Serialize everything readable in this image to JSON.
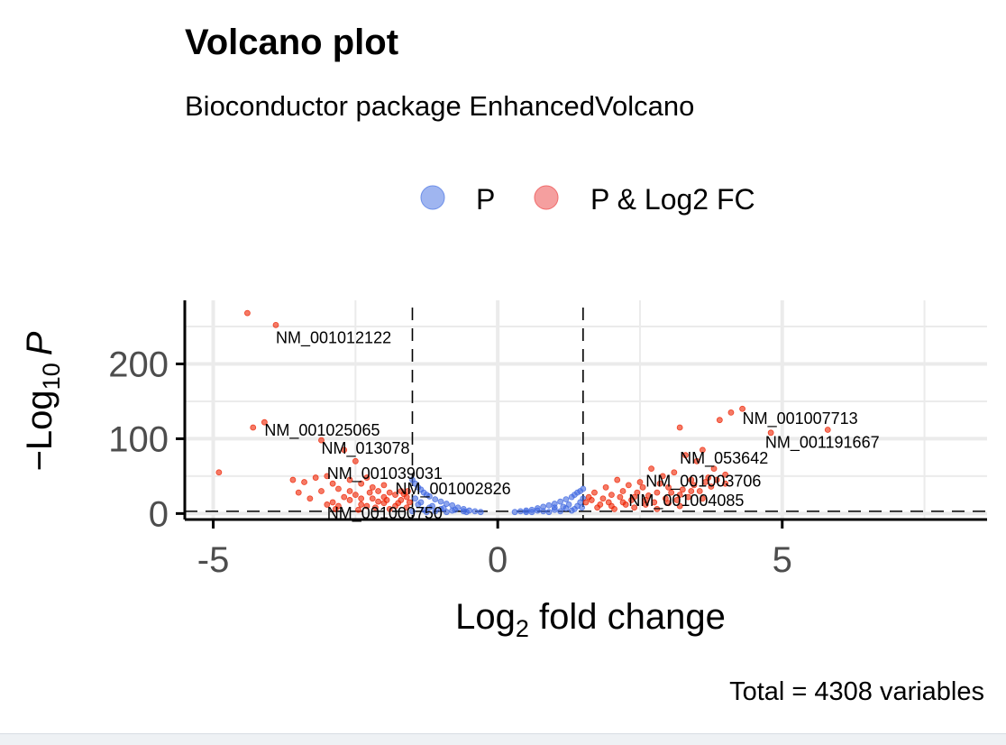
{
  "chart_data": {
    "type": "scatter",
    "title": "Volcano plot",
    "subtitle": "Bioconductor package EnhancedVolcano",
    "caption": "Total = 4308 variables",
    "xlabel": {
      "base": "Log",
      "sub": "2",
      "rest": " fold change"
    },
    "ylabel": {
      "minus": "−",
      "base": "Log",
      "sub": "10",
      "italic": "P"
    },
    "xlim": [
      -5.5,
      8.6
    ],
    "ylim": [
      -8,
      285
    ],
    "x_ticks": [
      {
        "value": -5,
        "label": "-5"
      },
      {
        "value": 0,
        "label": "0"
      },
      {
        "value": 5,
        "label": "5"
      }
    ],
    "y_ticks": [
      {
        "value": 0,
        "label": "0"
      },
      {
        "value": 100,
        "label": "100"
      },
      {
        "value": 200,
        "label": "200"
      }
    ],
    "grid": true,
    "legend_position": "top",
    "thresholds": {
      "fc_cutoff": 1.5,
      "p_cutoff_neglog10": 3
    },
    "legend": [
      {
        "name": "P",
        "color": "#6c8ee8"
      },
      {
        "name": "P & Log2 FC",
        "color": "#f06b6b"
      }
    ],
    "series": [
      {
        "name": "P",
        "color": "#4169e1",
        "points": [
          [
            -1.5,
            45
          ],
          [
            -1.45,
            40
          ],
          [
            -1.4,
            35
          ],
          [
            -1.35,
            32
          ],
          [
            -1.3,
            28
          ],
          [
            -1.25,
            25
          ],
          [
            -1.2,
            23
          ],
          [
            -1.1,
            19
          ],
          [
            -1.0,
            16
          ],
          [
            -0.9,
            13
          ],
          [
            -0.8,
            11
          ],
          [
            -0.7,
            8
          ],
          [
            -0.6,
            6
          ],
          [
            -0.5,
            4
          ],
          [
            -0.4,
            3
          ],
          [
            -0.3,
            2
          ],
          [
            -1.4,
            12
          ],
          [
            -1.2,
            8
          ],
          [
            -1.0,
            6
          ],
          [
            -0.8,
            4
          ],
          [
            -0.6,
            3
          ],
          [
            -1.3,
            5
          ],
          [
            -1.1,
            3
          ],
          [
            -0.9,
            2
          ],
          [
            -1.45,
            20
          ],
          [
            -1.35,
            15
          ],
          [
            -1.15,
            10
          ],
          [
            -0.95,
            7
          ],
          [
            -0.75,
            5
          ],
          [
            -0.55,
            2
          ],
          [
            -1.5,
            3
          ],
          [
            -1.25,
            2
          ],
          [
            0.3,
            2
          ],
          [
            0.4,
            3
          ],
          [
            0.5,
            4
          ],
          [
            0.6,
            5
          ],
          [
            0.7,
            7
          ],
          [
            0.8,
            9
          ],
          [
            0.9,
            11
          ],
          [
            1.0,
            13
          ],
          [
            1.1,
            16
          ],
          [
            1.2,
            19
          ],
          [
            1.3,
            22
          ],
          [
            1.35,
            25
          ],
          [
            1.4,
            28
          ],
          [
            1.45,
            30
          ],
          [
            1.5,
            33
          ],
          [
            1.5,
            20
          ],
          [
            0.6,
            2
          ],
          [
            0.8,
            3
          ],
          [
            1.0,
            5
          ],
          [
            1.2,
            7
          ],
          [
            1.4,
            10
          ],
          [
            0.9,
            2
          ],
          [
            1.1,
            3
          ],
          [
            1.3,
            4
          ],
          [
            0.7,
            4
          ],
          [
            1.0,
            8
          ],
          [
            1.25,
            12
          ],
          [
            1.45,
            15
          ],
          [
            0.5,
            2
          ],
          [
            1.35,
            6
          ],
          [
            1.15,
            9
          ],
          [
            1.48,
            8
          ]
        ]
      },
      {
        "name": "P & Log2 FC",
        "color": "#ee2200",
        "points": [
          [
            -4.4,
            268
          ],
          [
            -3.9,
            252
          ],
          [
            -4.1,
            122
          ],
          [
            -4.3,
            115
          ],
          [
            -4.9,
            55
          ],
          [
            -3.1,
            98
          ],
          [
            -2.7,
            85
          ],
          [
            -2.5,
            70
          ],
          [
            -3.6,
            45
          ],
          [
            -3.4,
            42
          ],
          [
            -3.2,
            48
          ],
          [
            -3.0,
            50
          ],
          [
            -2.9,
            40
          ],
          [
            -2.8,
            33
          ],
          [
            -3.3,
            20
          ],
          [
            -3.5,
            28
          ],
          [
            -2.6,
            45
          ],
          [
            -2.4,
            40
          ],
          [
            -2.3,
            48
          ],
          [
            -2.2,
            35
          ],
          [
            -2.1,
            30
          ],
          [
            -2.0,
            38
          ],
          [
            -1.9,
            28
          ],
          [
            -1.8,
            25
          ],
          [
            -1.7,
            30
          ],
          [
            -1.6,
            22
          ],
          [
            -1.55,
            15
          ],
          [
            -2.6,
            18
          ],
          [
            -2.4,
            12
          ],
          [
            -2.2,
            20
          ],
          [
            -2.0,
            14
          ],
          [
            -1.8,
            10
          ],
          [
            -1.7,
            18
          ],
          [
            -1.6,
            8
          ],
          [
            -2.9,
            15
          ],
          [
            -2.7,
            22
          ],
          [
            -2.5,
            25
          ],
          [
            -2.3,
            10
          ],
          [
            -2.1,
            16
          ],
          [
            -1.9,
            6
          ],
          [
            -3.1,
            30
          ],
          [
            -2.8,
            10
          ],
          [
            -2.6,
            30
          ],
          [
            -2.4,
            20
          ],
          [
            -2.0,
            22
          ],
          [
            -1.75,
            14
          ],
          [
            -1.65,
            26
          ],
          [
            -2.15,
            8
          ],
          [
            -2.45,
            5
          ],
          [
            -2.85,
            6
          ],
          [
            -1.95,
            18
          ],
          [
            -1.58,
            30
          ],
          [
            -3.0,
            12
          ],
          [
            -2.25,
            28
          ],
          [
            4.3,
            140
          ],
          [
            4.1,
            135
          ],
          [
            3.9,
            125
          ],
          [
            3.2,
            115
          ],
          [
            3.6,
            85
          ],
          [
            4.8,
            108
          ],
          [
            5.8,
            112
          ],
          [
            3.3,
            78
          ],
          [
            3.5,
            70
          ],
          [
            3.8,
            60
          ],
          [
            4.0,
            52
          ],
          [
            3.7,
            48
          ],
          [
            3.4,
            45
          ],
          [
            3.1,
            55
          ],
          [
            2.9,
            50
          ],
          [
            2.7,
            60
          ],
          [
            2.5,
            42
          ],
          [
            2.3,
            38
          ],
          [
            2.1,
            45
          ],
          [
            1.9,
            35
          ],
          [
            1.7,
            28
          ],
          [
            1.6,
            22
          ],
          [
            1.55,
            15
          ],
          [
            2.0,
            25
          ],
          [
            2.2,
            30
          ],
          [
            2.4,
            22
          ],
          [
            2.6,
            18
          ],
          [
            2.8,
            28
          ],
          [
            3.0,
            35
          ],
          [
            3.2,
            25
          ],
          [
            3.4,
            30
          ],
          [
            3.6,
            20
          ],
          [
            1.8,
            12
          ],
          [
            2.0,
            10
          ],
          [
            2.2,
            15
          ],
          [
            2.4,
            8
          ],
          [
            2.6,
            12
          ],
          [
            2.8,
            6
          ],
          [
            3.0,
            14
          ],
          [
            3.2,
            10
          ],
          [
            1.65,
            18
          ],
          [
            1.75,
            8
          ],
          [
            1.85,
            20
          ],
          [
            1.95,
            15
          ],
          [
            2.05,
            6
          ],
          [
            2.15,
            22
          ],
          [
            2.25,
            12
          ],
          [
            2.35,
            18
          ],
          [
            2.45,
            28
          ],
          [
            2.55,
            35
          ],
          [
            2.65,
            24
          ],
          [
            2.75,
            15
          ],
          [
            2.85,
            40
          ],
          [
            2.95,
            20
          ],
          [
            3.05,
            28
          ],
          [
            3.15,
            18
          ],
          [
            3.25,
            32
          ],
          [
            3.35,
            22
          ],
          [
            3.45,
            38
          ],
          [
            3.55,
            30
          ],
          [
            3.65,
            42
          ],
          [
            3.75,
            36
          ],
          [
            3.85,
            45
          ],
          [
            4.0,
            40
          ]
        ]
      }
    ],
    "labels": [
      {
        "text": "NM_001012122",
        "x": -3.9,
        "y": 228
      },
      {
        "text": "NM_001025065",
        "x": -4.1,
        "y": 104
      },
      {
        "text": "NM_013078",
        "x": -3.1,
        "y": 80
      },
      {
        "text": "NM_001039031",
        "x": -3.0,
        "y": 46
      },
      {
        "text": "NM_001002826",
        "x": -1.8,
        "y": 26
      },
      {
        "text": "NM_001000750",
        "x": -3.0,
        "y": -7
      },
      {
        "text": "NM_001007713",
        "x": 4.3,
        "y": 120
      },
      {
        "text": "NM_001191667",
        "x": 4.7,
        "y": 88
      },
      {
        "text": "NM_053642",
        "x": 3.2,
        "y": 67
      },
      {
        "text": "NM_001003706",
        "x": 2.6,
        "y": 36
      },
      {
        "text": "NM_001004085",
        "x": 2.3,
        "y": 10
      }
    ]
  }
}
